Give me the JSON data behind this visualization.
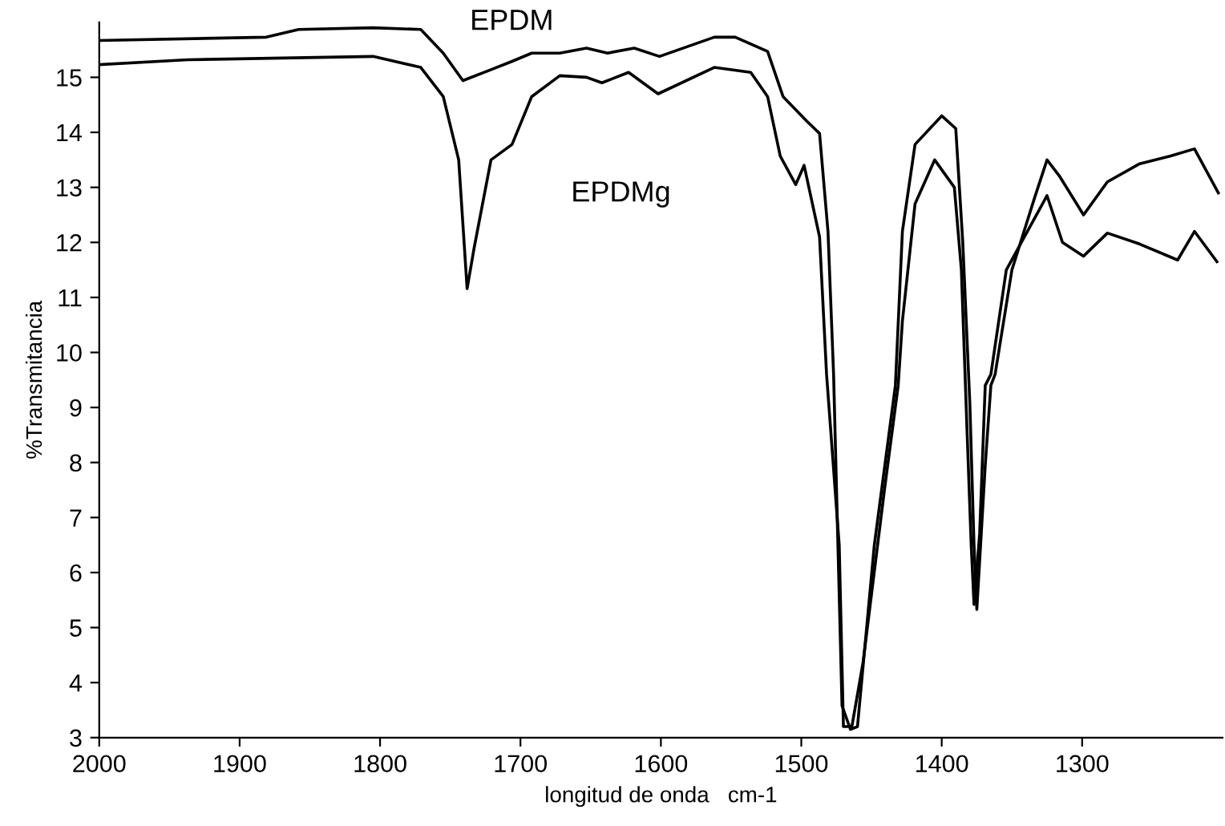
{
  "chart_data": {
    "type": "line",
    "xlabel": "longitud de onda   cm-1",
    "ylabel": "%Transmitancia",
    "xlim": [
      2000,
      1200
    ],
    "ylim": [
      3,
      16
    ],
    "xticks": [
      2000,
      1900,
      1800,
      1700,
      1600,
      1500,
      1400,
      1300
    ],
    "yticks": [
      3,
      4,
      5,
      6,
      7,
      8,
      9,
      10,
      11,
      12,
      13,
      14,
      15
    ],
    "grid": false,
    "line_style": "solid",
    "marker": "none",
    "series": [
      {
        "name": "EPDM",
        "color": "#000000",
        "x": [
          2000,
          1881,
          1858,
          1805,
          1771,
          1755,
          1741,
          1721,
          1706,
          1692,
          1672,
          1653,
          1638,
          1619,
          1601,
          1562,
          1547,
          1524,
          1513,
          1496,
          1487,
          1481,
          1477,
          1471,
          1465,
          1460,
          1448,
          1433,
          1428,
          1419,
          1400,
          1390,
          1385,
          1380,
          1377,
          1375,
          1369,
          1365,
          1362,
          1350,
          1334,
          1325,
          1316,
          1299,
          1282,
          1259,
          1237,
          1220,
          1203
        ],
        "values": [
          15.67,
          15.73,
          15.87,
          15.9,
          15.87,
          15.44,
          14.94,
          15.14,
          15.29,
          15.44,
          15.44,
          15.53,
          15.44,
          15.53,
          15.38,
          15.73,
          15.73,
          15.47,
          14.65,
          14.2,
          13.98,
          12.2,
          9.6,
          3.58,
          3.15,
          3.2,
          6.5,
          9.4,
          12.2,
          13.78,
          14.3,
          14.07,
          12.0,
          9.1,
          6.5,
          5.33,
          7.95,
          9.4,
          9.6,
          11.5,
          12.8,
          13.5,
          13.2,
          12.5,
          13.1,
          13.43,
          13.57,
          13.7,
          12.9
        ]
      },
      {
        "name": "EPDMg",
        "color": "#000000",
        "x": [
          2000,
          1937,
          1805,
          1771,
          1755,
          1744,
          1738,
          1733,
          1721,
          1706,
          1692,
          1672,
          1653,
          1642,
          1623,
          1602,
          1562,
          1536,
          1524,
          1515,
          1504,
          1498,
          1487,
          1482,
          1473,
          1470,
          1464,
          1456,
          1441,
          1431,
          1428,
          1419,
          1405,
          1391,
          1386,
          1382,
          1379,
          1377,
          1373,
          1369,
          1365,
          1354,
          1339,
          1325,
          1314,
          1299,
          1282,
          1259,
          1232,
          1220,
          1204
        ],
        "values": [
          15.23,
          15.32,
          15.38,
          15.18,
          14.65,
          13.5,
          11.16,
          11.9,
          13.5,
          13.78,
          14.65,
          15.03,
          15.0,
          14.9,
          15.09,
          14.7,
          15.18,
          15.09,
          14.65,
          13.57,
          13.05,
          13.4,
          12.1,
          9.6,
          6.5,
          3.2,
          3.2,
          4.37,
          7.46,
          9.4,
          10.57,
          12.7,
          13.5,
          13.0,
          11.5,
          8.6,
          6.5,
          5.42,
          6.7,
          9.4,
          9.6,
          11.5,
          12.2,
          12.85,
          12.0,
          11.75,
          12.17,
          11.97,
          11.68,
          12.2,
          11.65
        ]
      }
    ]
  }
}
